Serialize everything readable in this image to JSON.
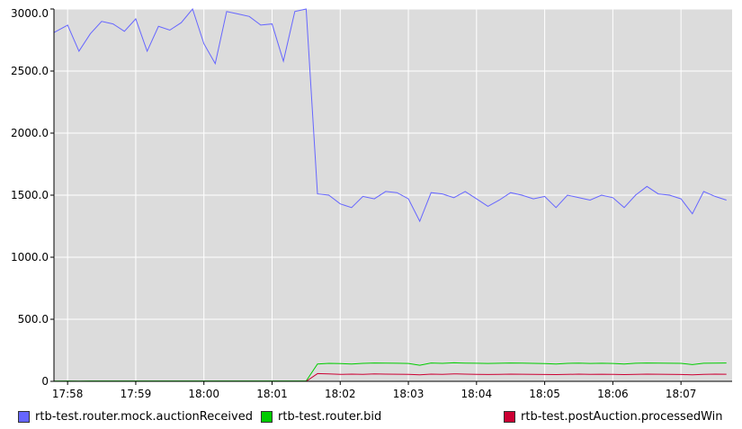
{
  "chart_data": {
    "type": "line",
    "title": "",
    "xlabel": "",
    "ylabel": "",
    "ylim": [
      0,
      3000
    ],
    "xlim": [
      "17:57:48",
      "18:07:45"
    ],
    "grid": true,
    "legend_position": "bottom",
    "y_ticks": [
      "0",
      "500.0",
      "1000.0",
      "1500.0",
      "2000.0",
      "2500.0",
      "3000.0"
    ],
    "x_ticks": [
      "17:58",
      "17:59",
      "18:00",
      "18:01",
      "18:02",
      "18:03",
      "18:04",
      "18:05",
      "18:06",
      "18:07"
    ],
    "x": [
      "17:57:48",
      "17:58:00",
      "17:58:10",
      "17:58:20",
      "17:58:30",
      "17:58:40",
      "17:58:50",
      "17:59:00",
      "17:59:10",
      "17:59:20",
      "17:59:30",
      "17:59:40",
      "17:59:50",
      "18:00:00",
      "18:00:10",
      "18:00:20",
      "18:00:30",
      "18:00:40",
      "18:00:50",
      "18:01:00",
      "18:01:10",
      "18:01:20",
      "18:01:30",
      "18:01:40",
      "18:01:50",
      "18:02:00",
      "18:02:10",
      "18:02:20",
      "18:02:30",
      "18:02:40",
      "18:02:50",
      "18:03:00",
      "18:03:10",
      "18:03:20",
      "18:03:30",
      "18:03:40",
      "18:03:50",
      "18:04:00",
      "18:04:10",
      "18:04:20",
      "18:04:30",
      "18:04:40",
      "18:04:50",
      "18:05:00",
      "18:05:10",
      "18:05:20",
      "18:05:30",
      "18:05:40",
      "18:05:50",
      "18:06:00",
      "18:06:10",
      "18:06:20",
      "18:06:30",
      "18:06:40",
      "18:06:50",
      "18:07:00",
      "18:07:10",
      "18:07:20",
      "18:07:30",
      "18:07:40"
    ],
    "series": [
      {
        "name": "rtb-test.router.mock.auctionReceived",
        "color": "#6666ff",
        "values": [
          2810,
          2870,
          2660,
          2800,
          2900,
          2880,
          2820,
          2920,
          2660,
          2860,
          2830,
          2890,
          3000,
          2720,
          2560,
          2980,
          2960,
          2940,
          2870,
          2880,
          2580,
          2980,
          3000,
          1510,
          1500,
          1430,
          1400,
          1490,
          1470,
          1530,
          1520,
          1470,
          1290,
          1520,
          1510,
          1480,
          1530,
          1470,
          1410,
          1460,
          1520,
          1500,
          1470,
          1490,
          1400,
          1500,
          1480,
          1460,
          1500,
          1480,
          1400,
          1500,
          1570,
          1510,
          1500,
          1470,
          1350,
          1530,
          1490,
          1460
        ]
      },
      {
        "name": "rtb-test.router.bid",
        "color": "#00cc00",
        "values": [
          2,
          3,
          2,
          3,
          3,
          3,
          3,
          3,
          3,
          3,
          3,
          3,
          3,
          3,
          3,
          3,
          3,
          3,
          3,
          3,
          3,
          3,
          3,
          140,
          145,
          143,
          140,
          145,
          148,
          147,
          146,
          144,
          130,
          148,
          145,
          149,
          147,
          146,
          144,
          146,
          148,
          147,
          145,
          143,
          140,
          145,
          147,
          144,
          146,
          144,
          140,
          146,
          148,
          147,
          146,
          145,
          135,
          146,
          147,
          148
        ]
      },
      {
        "name": "rtb-test.postAuction.processedWin",
        "color": "#cc0033",
        "values": [
          0,
          0,
          0,
          0,
          0,
          0,
          0,
          0,
          0,
          0,
          0,
          0,
          0,
          0,
          0,
          0,
          0,
          0,
          0,
          0,
          0,
          0,
          0,
          62,
          60,
          56,
          58,
          56,
          60,
          58,
          57,
          56,
          52,
          58,
          56,
          60,
          58,
          56,
          55,
          56,
          58,
          57,
          56,
          55,
          54,
          56,
          58,
          56,
          57,
          56,
          54,
          56,
          58,
          57,
          56,
          55,
          52,
          56,
          58,
          57
        ]
      }
    ]
  }
}
